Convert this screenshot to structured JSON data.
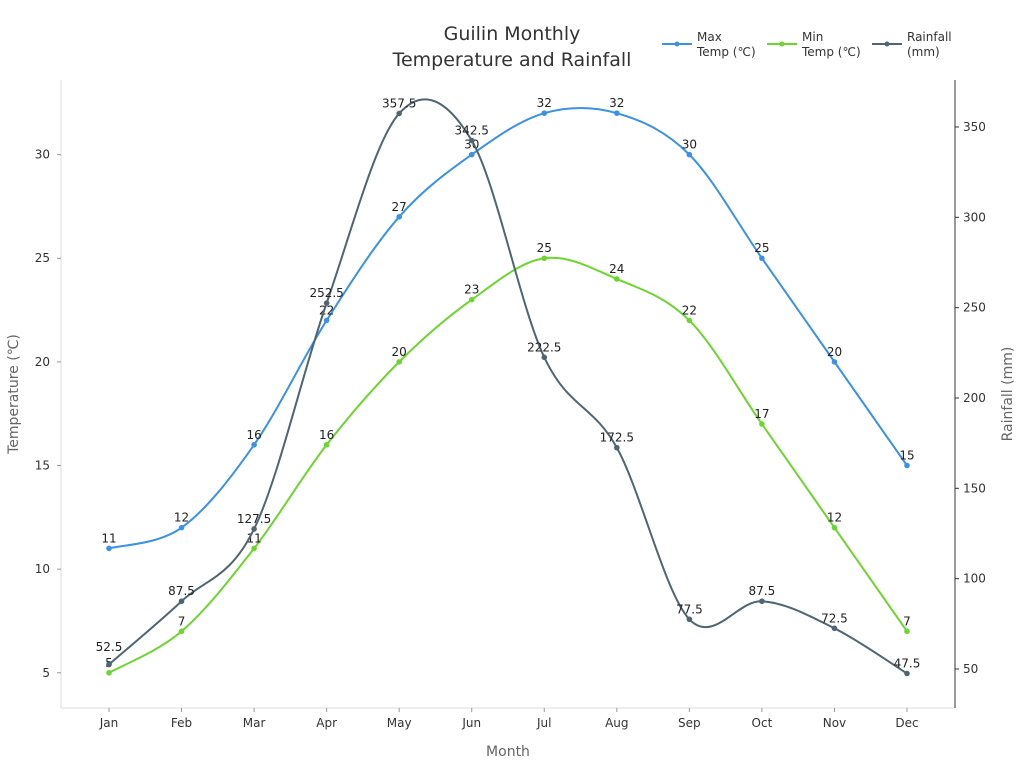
{
  "chart_data": {
    "type": "line",
    "title": "Guilin Monthly\nTemperature and Rainfall",
    "xlabel": "Month",
    "ylabel": "Temperature (℃)",
    "y2label": "Rainfall (mm)",
    "categories": [
      "Jan",
      "Feb",
      "Mar",
      "Apr",
      "May",
      "Jun",
      "Jul",
      "Aug",
      "Sep",
      "Oct",
      "Nov",
      "Dec"
    ],
    "ylim": [
      3.3,
      33.6
    ],
    "y2lim": [
      28.4,
      376
    ],
    "yticks": [
      5,
      10,
      15,
      20,
      25,
      30
    ],
    "y2ticks": [
      50,
      100,
      150,
      200,
      250,
      300,
      350
    ],
    "grid": false,
    "legend_position": "top-right",
    "smooth": true,
    "series": [
      {
        "name": "Max\nTemp (℃)",
        "axis": "left",
        "color": "#3a92e6",
        "values": [
          11,
          12,
          16,
          22,
          27,
          30,
          32,
          32,
          30,
          25,
          20,
          15
        ]
      },
      {
        "name": "Min\nTemp (℃)",
        "axis": "left",
        "color": "#6cd52e",
        "values": [
          5,
          7,
          11,
          16,
          20,
          23,
          25,
          24,
          22,
          17,
          12,
          7
        ]
      },
      {
        "name": "Rainfall\n(mm)",
        "axis": "right",
        "color": "#4f6672",
        "values": [
          52.5,
          87.5,
          127.5,
          252.5,
          357.5,
          342.5,
          222.5,
          172.5,
          77.5,
          87.5,
          72.5,
          47.5
        ]
      }
    ]
  }
}
